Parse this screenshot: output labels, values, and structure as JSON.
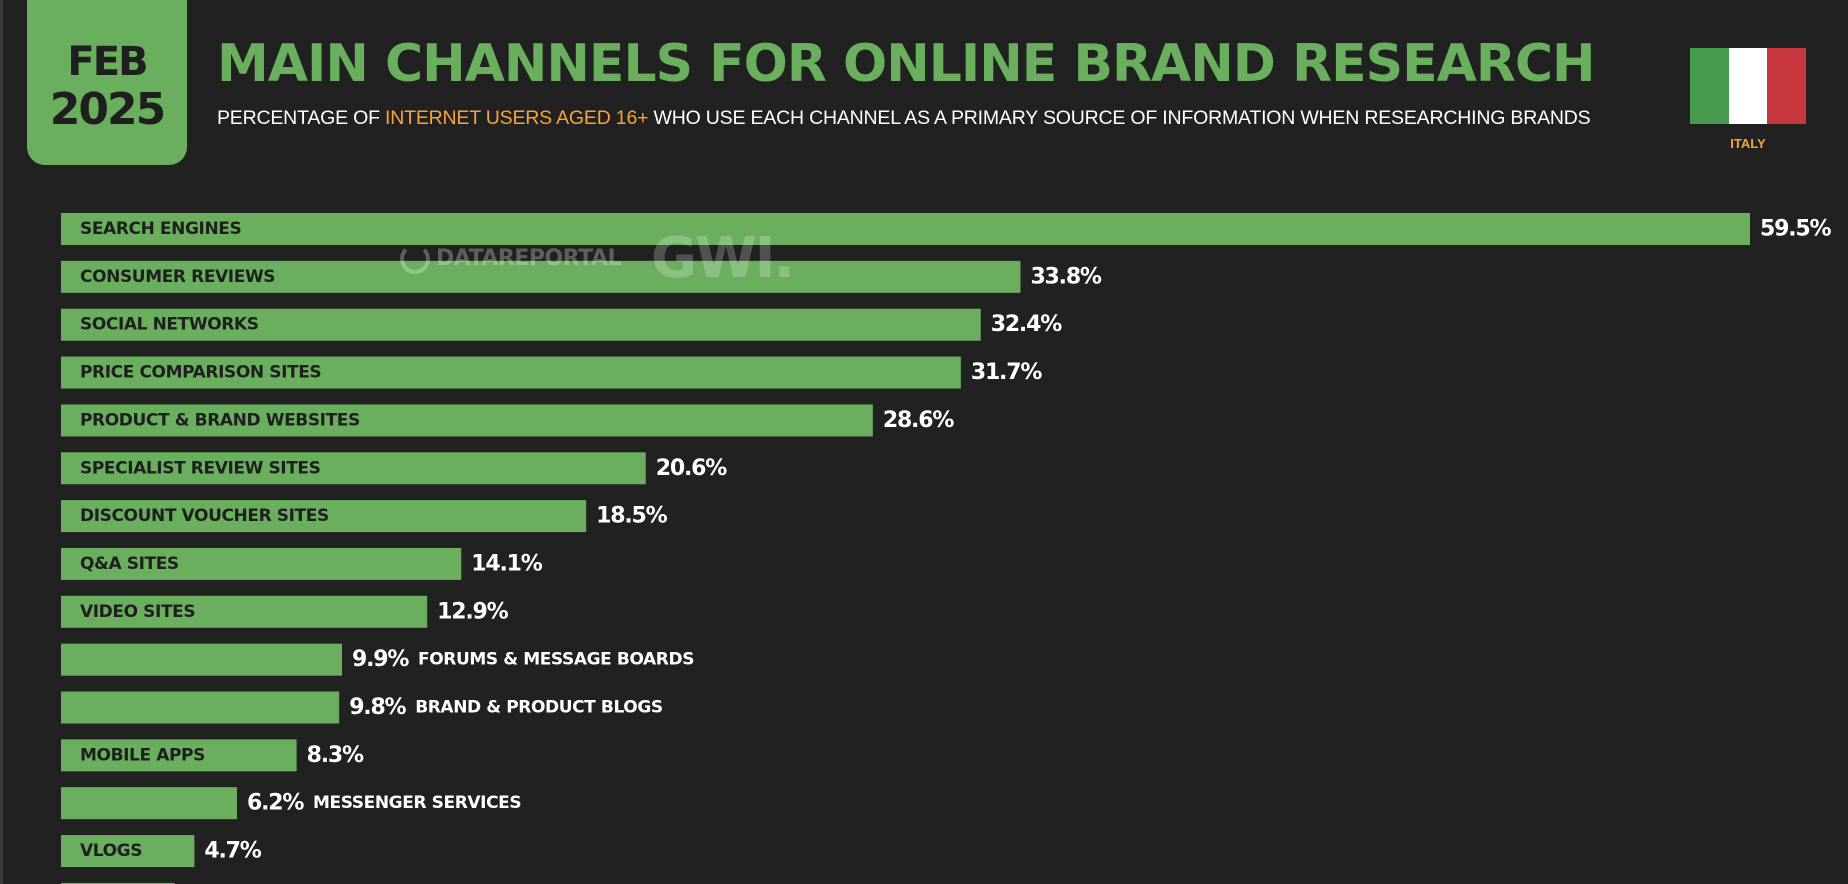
{
  "badge": {
    "month": "FEB",
    "year": "2025"
  },
  "header": {
    "title": "MAIN CHANNELS FOR ONLINE BRAND RESEARCH",
    "subtitle_pre": "PERCENTAGE OF ",
    "subtitle_highlight": "INTERNET USERS AGED 16+",
    "subtitle_post": " WHO USE EACH CHANNEL AS A PRIMARY SOURCE OF INFORMATION WHEN RESEARCHING BRANDS"
  },
  "country": {
    "label": "ITALY",
    "flag_colors": [
      "#479a4e",
      "#ffffff",
      "#c8373d"
    ]
  },
  "watermark": {
    "datareportal": "DATAREPORTAL",
    "gwi": "GWI."
  },
  "colors": {
    "accent": "#6aaf5e",
    "background": "#212121",
    "highlight": "#f6a43a",
    "bar_label_inside": "#1f1f1f",
    "bar_label_outside": "#ffffff"
  },
  "chart_data": {
    "type": "bar",
    "orientation": "horizontal",
    "categories": [
      "SEARCH ENGINES",
      "CONSUMER REVIEWS",
      "SOCIAL NETWORKS",
      "PRICE COMPARISON SITES",
      "PRODUCT & BRAND WEBSITES",
      "SPECIALIST REVIEW SITES",
      "DISCOUNT VOUCHER SITES",
      "Q&A SITES",
      "VIDEO SITES",
      "FORUMS & MESSAGE BOARDS",
      "BRAND & PRODUCT BLOGS",
      "MOBILE APPS",
      "MESSENGER SERVICES",
      "VLOGS",
      ""
    ],
    "values": [
      59.5,
      33.8,
      32.4,
      31.7,
      28.6,
      20.6,
      18.5,
      14.1,
      12.9,
      9.9,
      9.8,
      8.3,
      6.2,
      4.7,
      4.0
    ],
    "value_labels": [
      "59.5%",
      "33.8%",
      "32.4%",
      "31.7%",
      "28.6%",
      "20.6%",
      "18.5%",
      "14.1%",
      "12.9%",
      "9.9%",
      "9.8%",
      "8.3%",
      "6.2%",
      "4.7%",
      ""
    ],
    "label_placement": [
      "inside",
      "inside",
      "inside",
      "inside",
      "inside",
      "inside",
      "inside",
      "inside",
      "inside",
      "outside",
      "outside",
      "inside",
      "outside",
      "inside",
      "inside"
    ],
    "xlim": [
      0,
      59.5
    ],
    "grid": false,
    "legend": "none"
  }
}
